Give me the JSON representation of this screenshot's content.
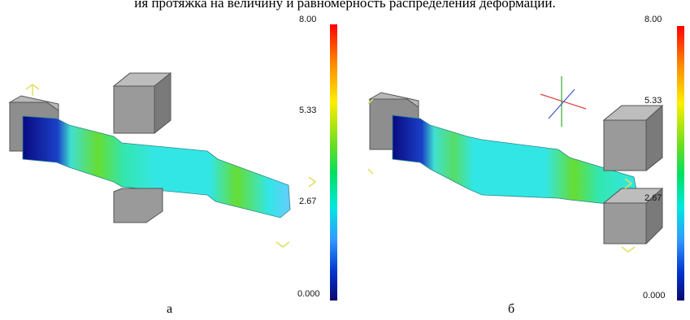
{
  "caption": "ия протяжка на величину и равномерность распределения деформации.",
  "panels": [
    {
      "label": "а",
      "scale": {
        "max": "8.00",
        "upper": "5.33",
        "lower": "2.67",
        "min": "0.000"
      }
    },
    {
      "label": "б",
      "scale": {
        "max": "8.00",
        "upper": "5.33",
        "lower": "2.67",
        "min": "0.000"
      }
    }
  ],
  "colors": {
    "low": "#0a0a70",
    "mid": "#33e6e6",
    "green": "#44d93a",
    "high": "#ff0000",
    "die": "#9a9a9a"
  }
}
